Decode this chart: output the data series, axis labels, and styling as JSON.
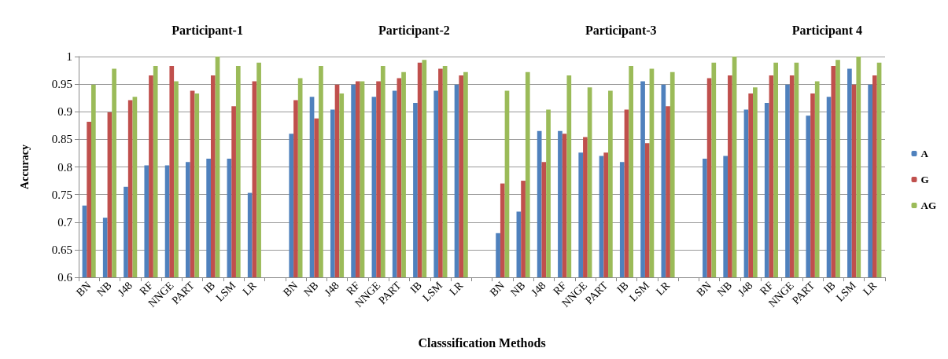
{
  "chart_data": {
    "type": "bar",
    "xlabel": "Classsification Methods",
    "ylabel": "Accuracy",
    "annotations": [
      "Participant-1",
      "Participant-2",
      "Participant-3",
      "Participant 4"
    ],
    "categories": [
      "BN",
      "NB",
      "J48",
      "RF",
      "NNGE",
      "PART",
      "IB",
      "LSM",
      "LR",
      null,
      "BN",
      "NB",
      "J48",
      "RF",
      "NNGE",
      "PART",
      "IB",
      "LSM",
      "LR",
      null,
      "BN",
      "NB",
      "J48",
      "RF",
      "NNGE",
      "PART",
      "IB",
      "LSM",
      "LR",
      null,
      "BN",
      "NB",
      "J48",
      "RF",
      "NNGE",
      "PART",
      "IB",
      "LSM",
      "LR"
    ],
    "series": [
      {
        "name": "A",
        "color": "#4f81bd",
        "values": [
          0.73,
          0.708,
          0.764,
          0.803,
          0.803,
          0.809,
          0.815,
          0.815,
          0.753,
          null,
          0.86,
          0.927,
          0.904,
          0.949,
          0.927,
          0.938,
          0.916,
          0.938,
          0.949,
          null,
          0.68,
          0.719,
          0.865,
          0.865,
          0.826,
          0.82,
          0.809,
          0.955,
          0.949,
          null,
          0.815,
          0.82,
          0.904,
          0.916,
          0.949,
          0.893,
          0.927,
          0.978,
          0.949
        ]
      },
      {
        "name": "G",
        "color": "#c0504d",
        "values": [
          0.882,
          0.899,
          0.921,
          0.966,
          0.983,
          0.938,
          0.966,
          0.91,
          0.955,
          null,
          0.921,
          0.888,
          0.949,
          0.955,
          0.955,
          0.961,
          0.989,
          0.978,
          0.966,
          null,
          0.77,
          0.775,
          0.809,
          0.86,
          0.854,
          0.826,
          0.904,
          0.843,
          0.91,
          null,
          0.961,
          0.966,
          0.933,
          0.966,
          0.966,
          0.933,
          0.983,
          0.949,
          0.966
        ]
      },
      {
        "name": "AG",
        "color": "#9bbb59",
        "values": [
          0.949,
          0.978,
          0.927,
          0.983,
          0.955,
          0.933,
          1.0,
          0.983,
          0.989,
          null,
          0.961,
          0.983,
          0.933,
          0.955,
          0.983,
          0.972,
          0.994,
          0.983,
          0.972,
          null,
          0.938,
          0.972,
          0.904,
          0.966,
          0.944,
          0.938,
          0.983,
          0.978,
          0.972,
          null,
          0.989,
          1.0,
          0.944,
          0.989,
          0.989,
          0.955,
          0.994,
          1.0,
          0.989
        ]
      }
    ],
    "ylim": [
      0.6,
      1
    ],
    "yticks": [
      0.6,
      0.65,
      0.7,
      0.75,
      0.8,
      0.85,
      0.9,
      0.95,
      1
    ],
    "grid": "y",
    "legend": "right"
  }
}
